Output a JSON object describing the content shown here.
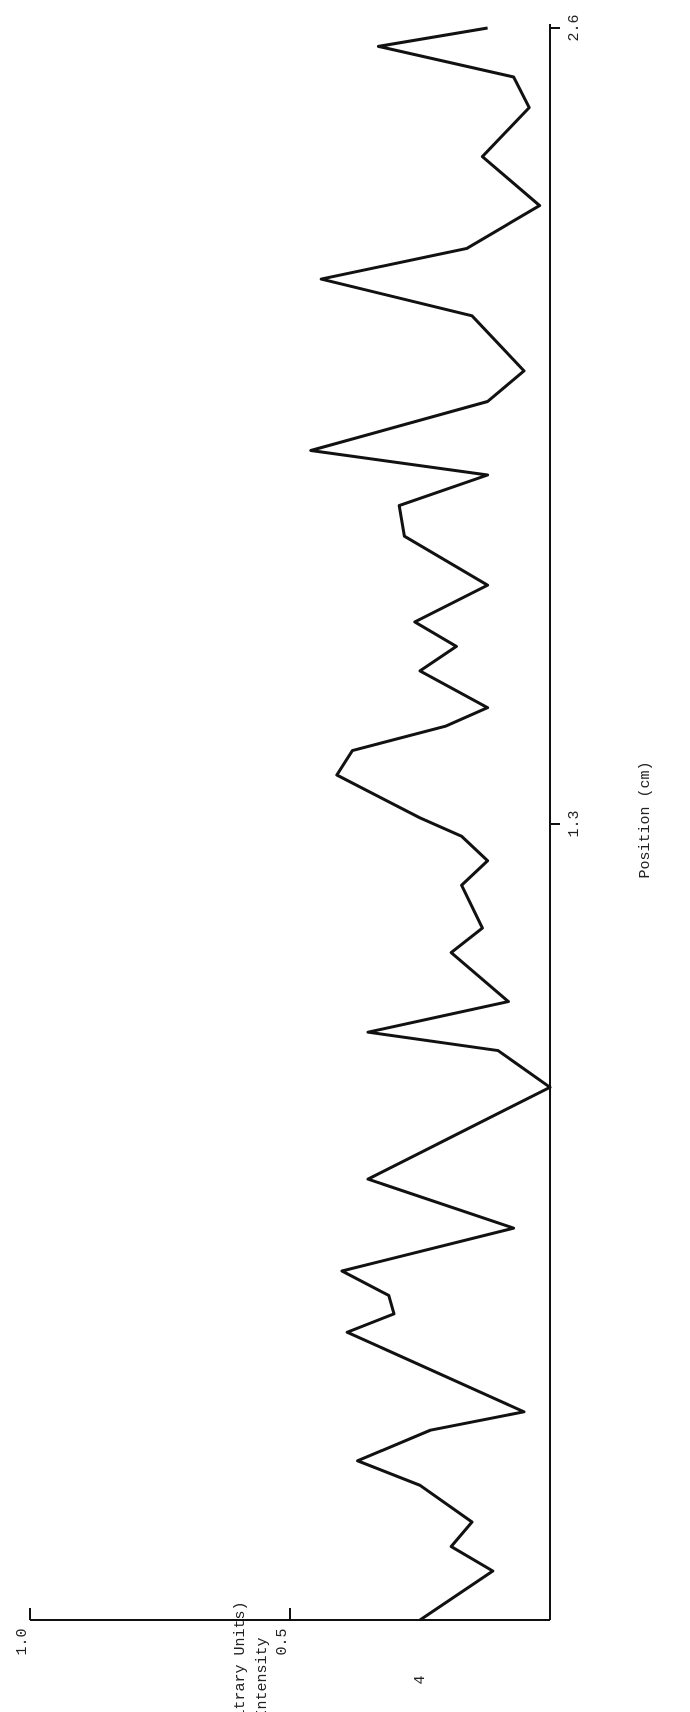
{
  "chart_data": {
    "type": "line",
    "x_label": "Position (cm)",
    "y_label_line1": "Intensity",
    "y_label_line2": "(Arbitrary Units)",
    "page_number": "4",
    "x": [
      0,
      0.08,
      0.12,
      0.16,
      0.22,
      0.26,
      0.31,
      0.34,
      0.47,
      0.5,
      0.53,
      0.57,
      0.64,
      0.72,
      0.78,
      0.87,
      0.93,
      0.96,
      1.01,
      1.09,
      1.13,
      1.2,
      1.24,
      1.28,
      1.31,
      1.38,
      1.42,
      1.46,
      1.49,
      1.55,
      1.59,
      1.63,
      1.69,
      1.77,
      1.82,
      1.87,
      1.91,
      1.99,
      2.04,
      2.13,
      2.19,
      2.24,
      2.31,
      2.39,
      2.47,
      2.52,
      2.57,
      2.6
    ],
    "series": [
      {
        "name": "Intensity",
        "color": "#111111",
        "values": [
          0.25,
          0.11,
          0.19,
          0.15,
          0.25,
          0.37,
          0.23,
          0.05,
          0.39,
          0.3,
          0.31,
          0.4,
          0.07,
          0.35,
          0.21,
          0.0,
          0.1,
          0.35,
          0.08,
          0.19,
          0.13,
          0.17,
          0.12,
          0.17,
          0.25,
          0.41,
          0.38,
          0.2,
          0.12,
          0.25,
          0.18,
          0.26,
          0.12,
          0.28,
          0.29,
          0.12,
          0.46,
          0.12,
          0.05,
          0.15,
          0.44,
          0.16,
          0.02,
          0.13,
          0.04,
          0.07,
          0.33,
          0.12
        ]
      }
    ],
    "xlim": [
      0,
      2.6
    ],
    "xticks": [
      1.3,
      2.6
    ],
    "ylim": [
      0,
      1
    ],
    "yticks": [
      0.5,
      {
        "value": 1,
        "label": "1.0"
      }
    ]
  }
}
